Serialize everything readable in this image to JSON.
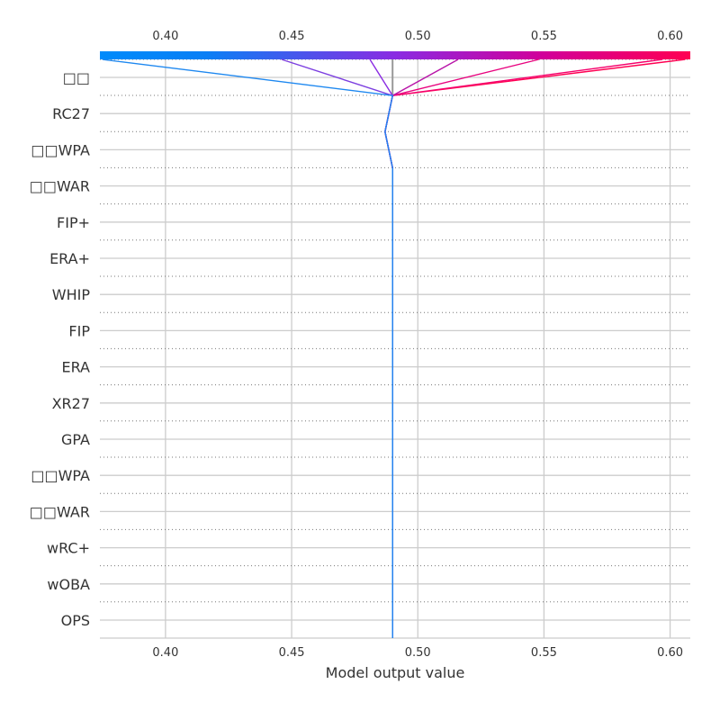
{
  "chart_data": {
    "type": "line",
    "chart_kind": "decision-plot",
    "xlabel": "Model output value",
    "xlim": [
      0.374,
      0.608
    ],
    "x_ticks": [
      "0.40",
      "0.45",
      "0.50",
      "0.55",
      "0.60"
    ],
    "x_tick_values": [
      0.4,
      0.45,
      0.5,
      0.55,
      0.6
    ],
    "base_value": 0.49,
    "grid": true,
    "colorbar": {
      "position": "top",
      "low_color": "#008bfb",
      "mid_color": "#8a2be2",
      "high_color": "#ff0052"
    },
    "features": [
      "OPS",
      "wOBA",
      "wRC+",
      "□□WAR",
      "□□WPA",
      "GPA",
      "XR27",
      "ERA",
      "FIP",
      "WHIP",
      "ERA+",
      "FIP+",
      "□□WAR",
      "□□WPA",
      "RC27",
      "□□"
    ],
    "series": [
      {
        "color": "#ff0052",
        "values": [
          0.49,
          0.49,
          0.49,
          0.49,
          0.49,
          0.49,
          0.49,
          0.49,
          0.49,
          0.49,
          0.49,
          0.49,
          0.49,
          0.49,
          0.487,
          0.49,
          0.606
        ]
      },
      {
        "color": "#f5006c",
        "values": [
          0.49,
          0.49,
          0.49,
          0.49,
          0.49,
          0.49,
          0.49,
          0.49,
          0.49,
          0.49,
          0.49,
          0.49,
          0.49,
          0.49,
          0.487,
          0.49,
          0.597
        ]
      },
      {
        "color": "#e8027e",
        "values": [
          0.49,
          0.49,
          0.49,
          0.49,
          0.49,
          0.49,
          0.49,
          0.49,
          0.49,
          0.49,
          0.49,
          0.49,
          0.49,
          0.49,
          0.487,
          0.49,
          0.548
        ]
      },
      {
        "color": "#b815a8",
        "values": [
          0.49,
          0.49,
          0.49,
          0.49,
          0.49,
          0.49,
          0.49,
          0.49,
          0.49,
          0.49,
          0.49,
          0.49,
          0.49,
          0.49,
          0.487,
          0.49,
          0.516
        ]
      },
      {
        "color": "#8a2be2",
        "values": [
          0.49,
          0.49,
          0.49,
          0.49,
          0.49,
          0.49,
          0.49,
          0.49,
          0.49,
          0.49,
          0.49,
          0.49,
          0.49,
          0.49,
          0.487,
          0.49,
          0.481
        ]
      },
      {
        "color": "#7c3fe0",
        "values": [
          0.49,
          0.49,
          0.49,
          0.49,
          0.49,
          0.49,
          0.49,
          0.49,
          0.49,
          0.49,
          0.49,
          0.49,
          0.49,
          0.49,
          0.487,
          0.49,
          0.446
        ]
      },
      {
        "color": "#1e88f0",
        "values": [
          0.49,
          0.49,
          0.49,
          0.49,
          0.49,
          0.49,
          0.49,
          0.49,
          0.49,
          0.49,
          0.49,
          0.49,
          0.49,
          0.49,
          0.487,
          0.49,
          0.375
        ]
      }
    ]
  }
}
